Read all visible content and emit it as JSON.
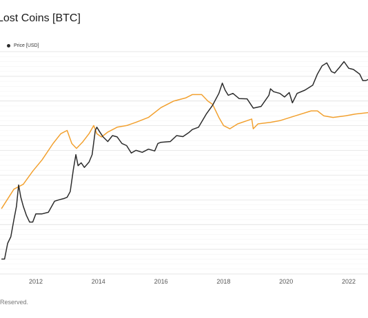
{
  "chart_data": {
    "type": "line",
    "title": "Lost Coins [BTC]",
    "xlabel": "",
    "ylabel": "",
    "x_ticks": [
      "2012",
      "2014",
      "2016",
      "2018",
      "2020",
      "2022"
    ],
    "xlim": [
      2010.9,
      2022.65
    ],
    "grid": true,
    "legend": {
      "position": "top-left"
    },
    "series": [
      {
        "name": "Price [USD]",
        "color": "#2b2b2b",
        "axis": "right-log",
        "points": [
          [
            2010.9,
            0.3
          ],
          [
            2011.0,
            0.3
          ],
          [
            2011.1,
            0.8
          ],
          [
            2011.2,
            1.2
          ],
          [
            2011.3,
            3.5
          ],
          [
            2011.38,
            8.0
          ],
          [
            2011.45,
            30.0
          ],
          [
            2011.52,
            14.0
          ],
          [
            2011.6,
            8.0
          ],
          [
            2011.7,
            4.5
          ],
          [
            2011.8,
            3.0
          ],
          [
            2011.9,
            3.0
          ],
          [
            2012.0,
            5.0
          ],
          [
            2012.2,
            5.0
          ],
          [
            2012.4,
            5.5
          ],
          [
            2012.6,
            11.0
          ],
          [
            2012.75,
            12.0
          ],
          [
            2012.9,
            13.0
          ],
          [
            2013.0,
            14.0
          ],
          [
            2013.1,
            20.0
          ],
          [
            2013.2,
            80.0
          ],
          [
            2013.28,
            200.0
          ],
          [
            2013.35,
            100.0
          ],
          [
            2013.45,
            120.0
          ],
          [
            2013.55,
            90.0
          ],
          [
            2013.7,
            125.0
          ],
          [
            2013.8,
            200.0
          ],
          [
            2013.9,
            900.0
          ],
          [
            2013.95,
            1100.0
          ],
          [
            2014.05,
            800.0
          ],
          [
            2014.15,
            600.0
          ],
          [
            2014.3,
            450.0
          ],
          [
            2014.45,
            650.0
          ],
          [
            2014.6,
            600.0
          ],
          [
            2014.75,
            400.0
          ],
          [
            2014.9,
            350.0
          ],
          [
            2015.05,
            220.0
          ],
          [
            2015.2,
            260.0
          ],
          [
            2015.4,
            230.0
          ],
          [
            2015.6,
            280.0
          ],
          [
            2015.8,
            250.0
          ],
          [
            2015.9,
            400.0
          ],
          [
            2016.0,
            430.0
          ],
          [
            2016.3,
            450.0
          ],
          [
            2016.5,
            650.0
          ],
          [
            2016.7,
            610.0
          ],
          [
            2016.9,
            800.0
          ],
          [
            2017.0,
            950.0
          ],
          [
            2017.2,
            1100.0
          ],
          [
            2017.45,
            2500.0
          ],
          [
            2017.65,
            4300.0
          ],
          [
            2017.85,
            9000.0
          ],
          [
            2017.96,
            17000.0
          ],
          [
            2018.05,
            11000.0
          ],
          [
            2018.15,
            8000.0
          ],
          [
            2018.3,
            9000.0
          ],
          [
            2018.5,
            6500.0
          ],
          [
            2018.75,
            6400.0
          ],
          [
            2018.95,
            3600.0
          ],
          [
            2019.2,
            4000.0
          ],
          [
            2019.45,
            8000.0
          ],
          [
            2019.5,
            12000.0
          ],
          [
            2019.6,
            10000.0
          ],
          [
            2019.8,
            9000.0
          ],
          [
            2019.95,
            7200.0
          ],
          [
            2020.1,
            9500.0
          ],
          [
            2020.2,
            5000.0
          ],
          [
            2020.35,
            9000.0
          ],
          [
            2020.6,
            11000.0
          ],
          [
            2020.85,
            15000.0
          ],
          [
            2021.0,
            30000.0
          ],
          [
            2021.15,
            50000.0
          ],
          [
            2021.3,
            60000.0
          ],
          [
            2021.45,
            35000.0
          ],
          [
            2021.55,
            32000.0
          ],
          [
            2021.7,
            45000.0
          ],
          [
            2021.85,
            65000.0
          ],
          [
            2022.0,
            43000.0
          ],
          [
            2022.15,
            40000.0
          ],
          [
            2022.35,
            30000.0
          ],
          [
            2022.45,
            20000.0
          ],
          [
            2022.55,
            20000.0
          ],
          [
            2022.65,
            22000.0
          ]
        ]
      },
      {
        "name": "Lost Coins [BTC]",
        "color": "#f2a02e",
        "axis": "left",
        "points": [
          [
            2010.9,
            2.0
          ],
          [
            2011.3,
            2.6
          ],
          [
            2011.6,
            2.75
          ],
          [
            2011.9,
            3.15
          ],
          [
            2012.2,
            3.5
          ],
          [
            2012.55,
            4.0
          ],
          [
            2012.8,
            4.3
          ],
          [
            2013.0,
            4.4
          ],
          [
            2013.15,
            4.0
          ],
          [
            2013.3,
            3.85
          ],
          [
            2013.5,
            4.05
          ],
          [
            2013.7,
            4.3
          ],
          [
            2013.85,
            4.55
          ],
          [
            2013.95,
            4.3
          ],
          [
            2014.1,
            4.2
          ],
          [
            2014.3,
            4.35
          ],
          [
            2014.6,
            4.5
          ],
          [
            2014.9,
            4.55
          ],
          [
            2015.2,
            4.65
          ],
          [
            2015.6,
            4.8
          ],
          [
            2016.0,
            5.1
          ],
          [
            2016.4,
            5.3
          ],
          [
            2016.8,
            5.4
          ],
          [
            2017.0,
            5.5
          ],
          [
            2017.3,
            5.5
          ],
          [
            2017.5,
            5.3
          ],
          [
            2017.65,
            5.2
          ],
          [
            2017.85,
            4.8
          ],
          [
            2018.0,
            4.55
          ],
          [
            2018.2,
            4.45
          ],
          [
            2018.45,
            4.6
          ],
          [
            2018.75,
            4.7
          ],
          [
            2018.9,
            4.75
          ],
          [
            2018.95,
            4.45
          ],
          [
            2019.1,
            4.6
          ],
          [
            2019.5,
            4.65
          ],
          [
            2019.8,
            4.7
          ],
          [
            2020.3,
            4.85
          ],
          [
            2020.8,
            5.0
          ],
          [
            2021.0,
            5.0
          ],
          [
            2021.2,
            4.85
          ],
          [
            2021.5,
            4.8
          ],
          [
            2021.9,
            4.85
          ],
          [
            2022.2,
            4.9
          ],
          [
            2022.65,
            4.95
          ]
        ]
      }
    ]
  },
  "footer": {
    "text": "Reserved."
  }
}
